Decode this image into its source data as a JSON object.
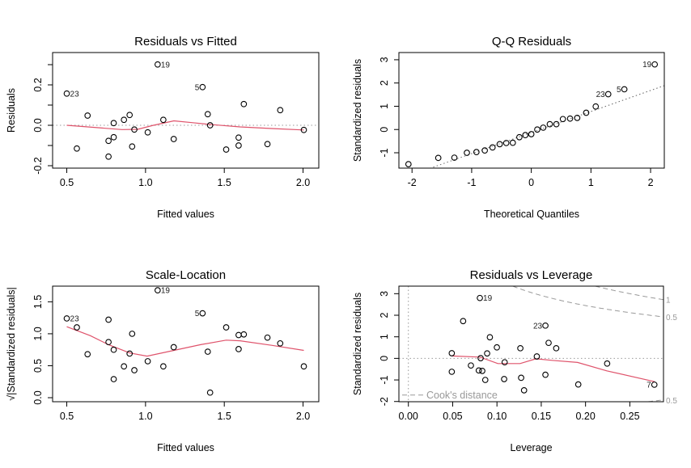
{
  "colors": {
    "points": "#000000",
    "smooth": "#DF536B",
    "reference": "#999999",
    "cook": "#999999"
  },
  "chart_data": [
    {
      "type": "scatter",
      "title": "Residuals vs Fitted",
      "xlabel": "Fitted values",
      "ylabel": "Residuals",
      "xlim": [
        0.41,
        2.1
      ],
      "ylim": [
        -0.212,
        0.36
      ],
      "xticks": [
        {
          "v": 0.5,
          "label": "0.5"
        },
        {
          "v": 1.0,
          "label": "1.0"
        },
        {
          "v": 1.5,
          "label": "1.5"
        },
        {
          "v": 2.0,
          "label": "2.0"
        }
      ],
      "yticks": [
        {
          "v": -0.2,
          "label": "-0.2"
        },
        {
          "v": -0.1,
          "label": ""
        },
        {
          "v": 0.0,
          "label": "0.0"
        },
        {
          "v": 0.1,
          "label": ""
        },
        {
          "v": 0.2,
          "label": "0.2"
        },
        {
          "v": 0.3,
          "label": ""
        }
      ],
      "hline": 0,
      "points": [
        {
          "x": 0.5,
          "y": 0.157,
          "label": "23",
          "side": "right"
        },
        {
          "x": 0.564,
          "y": -0.115
        },
        {
          "x": 0.632,
          "y": 0.048
        },
        {
          "x": 0.765,
          "y": -0.077
        },
        {
          "x": 0.765,
          "y": -0.155
        },
        {
          "x": 0.798,
          "y": 0.011
        },
        {
          "x": 0.798,
          "y": -0.059
        },
        {
          "x": 0.863,
          "y": 0.027
        },
        {
          "x": 0.899,
          "y": 0.051
        },
        {
          "x": 0.915,
          "y": -0.105
        },
        {
          "x": 0.929,
          "y": -0.021
        },
        {
          "x": 1.014,
          "y": -0.035
        },
        {
          "x": 1.077,
          "y": 0.301,
          "label": "19",
          "side": "right"
        },
        {
          "x": 1.113,
          "y": 0.027
        },
        {
          "x": 1.179,
          "y": -0.068
        },
        {
          "x": 1.362,
          "y": 0.189,
          "label": "5",
          "side": "left"
        },
        {
          "x": 1.395,
          "y": 0.055
        },
        {
          "x": 1.41,
          "y": 0.0
        },
        {
          "x": 1.512,
          "y": -0.12
        },
        {
          "x": 1.591,
          "y": -0.061
        },
        {
          "x": 1.591,
          "y": -0.1
        },
        {
          "x": 1.624,
          "y": 0.105
        },
        {
          "x": 1.774,
          "y": -0.093
        },
        {
          "x": 1.855,
          "y": 0.075
        },
        {
          "x": 2.005,
          "y": -0.023
        }
      ],
      "smooth": [
        [
          0.5,
          0.0
        ],
        [
          0.7,
          -0.012
        ],
        [
          0.85,
          -0.021
        ],
        [
          0.95,
          -0.02
        ],
        [
          1.05,
          0.0
        ],
        [
          1.18,
          0.022
        ],
        [
          1.3,
          0.013
        ],
        [
          1.4,
          0.005
        ],
        [
          1.6,
          -0.008
        ],
        [
          1.8,
          -0.016
        ],
        [
          2.005,
          -0.023
        ]
      ]
    },
    {
      "type": "scatter",
      "title": "Q-Q Residuals",
      "xlabel": "Theoretical Quantiles",
      "ylabel": "Standardized residuals",
      "xlim": [
        -2.22,
        2.23
      ],
      "ylim": [
        -1.66,
        3.31
      ],
      "xticks": [
        {
          "v": -2,
          "label": "-2"
        },
        {
          "v": -1,
          "label": "-1"
        },
        {
          "v": 0,
          "label": "0"
        },
        {
          "v": 1,
          "label": "1"
        },
        {
          "v": 2,
          "label": "2"
        }
      ],
      "yticks": [
        {
          "v": -1,
          "label": "-1"
        },
        {
          "v": 0,
          "label": "0"
        },
        {
          "v": 1,
          "label": "1"
        },
        {
          "v": 2,
          "label": "2"
        },
        {
          "v": 3,
          "label": "3"
        }
      ],
      "qqline": {
        "intercept": -0.13,
        "slope": 0.905
      },
      "points": [
        {
          "x": -2.06,
          "y": -1.49
        },
        {
          "x": -1.56,
          "y": -1.22
        },
        {
          "x": -1.29,
          "y": -1.21
        },
        {
          "x": -1.08,
          "y": -1.0
        },
        {
          "x": -0.92,
          "y": -0.97
        },
        {
          "x": -0.78,
          "y": -0.9
        },
        {
          "x": -0.65,
          "y": -0.77
        },
        {
          "x": -0.53,
          "y": -0.63
        },
        {
          "x": -0.42,
          "y": -0.58
        },
        {
          "x": -0.31,
          "y": -0.57
        },
        {
          "x": -0.2,
          "y": -0.33
        },
        {
          "x": -0.1,
          "y": -0.24
        },
        {
          "x": 0.0,
          "y": -0.2
        },
        {
          "x": 0.1,
          "y": 0.0
        },
        {
          "x": 0.2,
          "y": 0.08
        },
        {
          "x": 0.31,
          "y": 0.23
        },
        {
          "x": 0.42,
          "y": 0.23
        },
        {
          "x": 0.53,
          "y": 0.45
        },
        {
          "x": 0.65,
          "y": 0.47
        },
        {
          "x": 0.77,
          "y": 0.5
        },
        {
          "x": 0.92,
          "y": 0.72
        },
        {
          "x": 1.08,
          "y": 0.99
        },
        {
          "x": 1.29,
          "y": 1.52,
          "label": "23",
          "side": "left"
        },
        {
          "x": 1.56,
          "y": 1.73,
          "label": "5",
          "side": "left"
        },
        {
          "x": 2.07,
          "y": 2.8,
          "label": "19",
          "side": "left"
        }
      ]
    },
    {
      "type": "scatter",
      "title": "Scale-Location",
      "xlabel": "Fitted values",
      "ylabel": "√|Standardized residuals|",
      "xlim": [
        0.41,
        2.1
      ],
      "ylim": [
        -0.063,
        1.745
      ],
      "xticks": [
        {
          "v": 0.5,
          "label": "0.5"
        },
        {
          "v": 1.0,
          "label": "1.0"
        },
        {
          "v": 1.5,
          "label": "1.5"
        },
        {
          "v": 2.0,
          "label": "2.0"
        }
      ],
      "yticks": [
        {
          "v": 0.0,
          "label": "0.0"
        },
        {
          "v": 0.5,
          "label": "0.5"
        },
        {
          "v": 1.0,
          "label": "1.0"
        },
        {
          "v": 1.5,
          "label": "1.5"
        }
      ],
      "points": [
        {
          "x": 0.5,
          "y": 1.24,
          "label": "23",
          "side": "right"
        },
        {
          "x": 0.564,
          "y": 1.1
        },
        {
          "x": 0.632,
          "y": 0.68
        },
        {
          "x": 0.765,
          "y": 1.22
        },
        {
          "x": 0.765,
          "y": 0.87
        },
        {
          "x": 0.798,
          "y": 0.75
        },
        {
          "x": 0.798,
          "y": 0.29
        },
        {
          "x": 0.863,
          "y": 0.49
        },
        {
          "x": 0.899,
          "y": 0.69
        },
        {
          "x": 0.915,
          "y": 1.0
        },
        {
          "x": 0.929,
          "y": 0.43
        },
        {
          "x": 1.014,
          "y": 0.57
        },
        {
          "x": 1.077,
          "y": 1.68,
          "label": "19",
          "side": "right"
        },
        {
          "x": 1.113,
          "y": 0.49
        },
        {
          "x": 1.179,
          "y": 0.79
        },
        {
          "x": 1.362,
          "y": 1.32,
          "label": "5",
          "side": "left"
        },
        {
          "x": 1.395,
          "y": 0.72
        },
        {
          "x": 1.41,
          "y": 0.08
        },
        {
          "x": 1.512,
          "y": 1.1
        },
        {
          "x": 1.591,
          "y": 0.98
        },
        {
          "x": 1.591,
          "y": 0.76
        },
        {
          "x": 1.624,
          "y": 0.99
        },
        {
          "x": 1.774,
          "y": 0.94
        },
        {
          "x": 1.855,
          "y": 0.85
        },
        {
          "x": 2.005,
          "y": 0.49
        }
      ],
      "smooth": [
        [
          0.5,
          1.11
        ],
        [
          0.65,
          0.97
        ],
        [
          0.765,
          0.83
        ],
        [
          0.9,
          0.7
        ],
        [
          1.01,
          0.65
        ],
        [
          1.18,
          0.74
        ],
        [
          1.35,
          0.83
        ],
        [
          1.512,
          0.9
        ],
        [
          1.6,
          0.89
        ],
        [
          1.8,
          0.82
        ],
        [
          2.005,
          0.74
        ]
      ]
    },
    {
      "type": "scatter",
      "title": "Residuals vs Leverage",
      "xlabel": "Leverage",
      "ylabel": "Standardized residuals",
      "xlim": [
        -0.0107,
        0.288
      ],
      "ylim": [
        -2.01,
        3.35
      ],
      "xticks": [
        {
          "v": 0.0,
          "label": "0.00"
        },
        {
          "v": 0.05,
          "label": "0.05"
        },
        {
          "v": 0.1,
          "label": "0.10"
        },
        {
          "v": 0.15,
          "label": "0.15"
        },
        {
          "v": 0.2,
          "label": "0.20"
        },
        {
          "v": 0.25,
          "label": "0.25"
        }
      ],
      "yticks": [
        {
          "v": -2,
          "label": "-2"
        },
        {
          "v": -1,
          "label": "-1"
        },
        {
          "v": 0,
          "label": "0"
        },
        {
          "v": 1,
          "label": "1"
        },
        {
          "v": 2,
          "label": "2"
        },
        {
          "v": 3,
          "label": "3"
        }
      ],
      "hline": 0,
      "vline": 0,
      "points": [
        {
          "x": 0.0807,
          "y": 2.8,
          "label": "19",
          "side": "right"
        },
        {
          "x": 0.0618,
          "y": 1.73
        },
        {
          "x": 0.092,
          "y": 0.98
        },
        {
          "x": 0.0999,
          "y": 0.51
        },
        {
          "x": 0.0889,
          "y": 0.23
        },
        {
          "x": 0.049,
          "y": 0.24
        },
        {
          "x": 0.049,
          "y": -0.62
        },
        {
          "x": 0.0706,
          "y": -0.33
        },
        {
          "x": 0.0795,
          "y": -0.56
        },
        {
          "x": 0.0834,
          "y": -0.58
        },
        {
          "x": 0.0816,
          "y": 0.01
        },
        {
          "x": 0.0868,
          "y": -1.0
        },
        {
          "x": 0.1087,
          "y": -0.18
        },
        {
          "x": 0.1081,
          "y": -0.96
        },
        {
          "x": 0.1264,
          "y": 0.47
        },
        {
          "x": 0.1273,
          "y": -0.9
        },
        {
          "x": 0.1306,
          "y": -1.48
        },
        {
          "x": 0.145,
          "y": 0.09
        },
        {
          "x": 0.1547,
          "y": 1.52,
          "label": "23",
          "side": "left"
        },
        {
          "x": 0.1547,
          "y": -0.76
        },
        {
          "x": 0.1583,
          "y": 0.72
        },
        {
          "x": 0.1669,
          "y": 0.47
        },
        {
          "x": 0.1918,
          "y": -1.21
        },
        {
          "x": 0.2244,
          "y": -0.24
        },
        {
          "x": 0.2777,
          "y": -1.22,
          "label": "7",
          "side": "left"
        }
      ],
      "smooth": [
        [
          0.049,
          0.11
        ],
        [
          0.081,
          0.06
        ],
        [
          0.101,
          -0.24
        ],
        [
          0.126,
          -0.24
        ],
        [
          0.144,
          -0.02
        ],
        [
          0.162,
          -0.09
        ],
        [
          0.191,
          -0.19
        ],
        [
          0.224,
          -0.58
        ],
        [
          0.278,
          -1.08
        ]
      ],
      "cook_levels": [
        0.5,
        1
      ],
      "cook_labels": {
        "upper_1": "1",
        "upper_05": "0.5",
        "lower_05": "0.5"
      },
      "legend": "Cook's distance"
    }
  ]
}
